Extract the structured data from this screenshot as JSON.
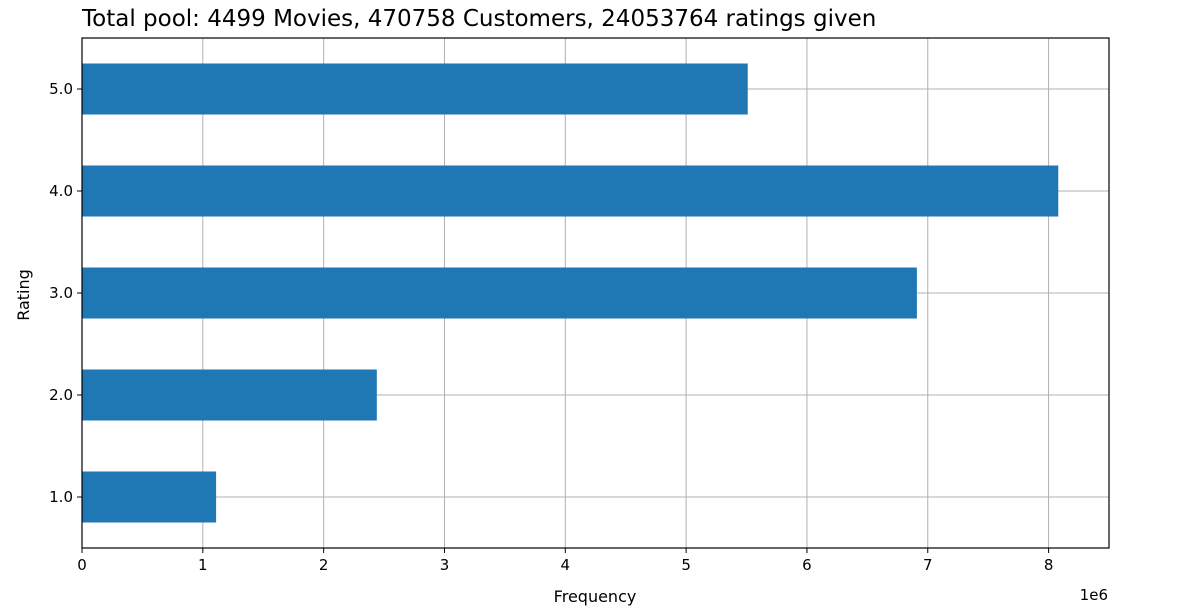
{
  "chart_data": {
    "type": "bar",
    "orientation": "horizontal",
    "title": "Total pool: 4499 Movies, 470758 Customers, 24053764 ratings given",
    "xlabel": "Frequency",
    "ylabel": "Rating",
    "x_offset_label": "1e6",
    "categories": [
      "1.0",
      "2.0",
      "3.0",
      "4.0",
      "5.0"
    ],
    "values": [
      1.11,
      2.44,
      6.91,
      8.08,
      5.51
    ],
    "value_scale": 1000000,
    "xlim": [
      0,
      8.5
    ],
    "x_ticks": [
      "0",
      "1",
      "2",
      "3",
      "4",
      "5",
      "6",
      "7",
      "8"
    ],
    "grid": true,
    "bar_color": "#1f77b4"
  }
}
